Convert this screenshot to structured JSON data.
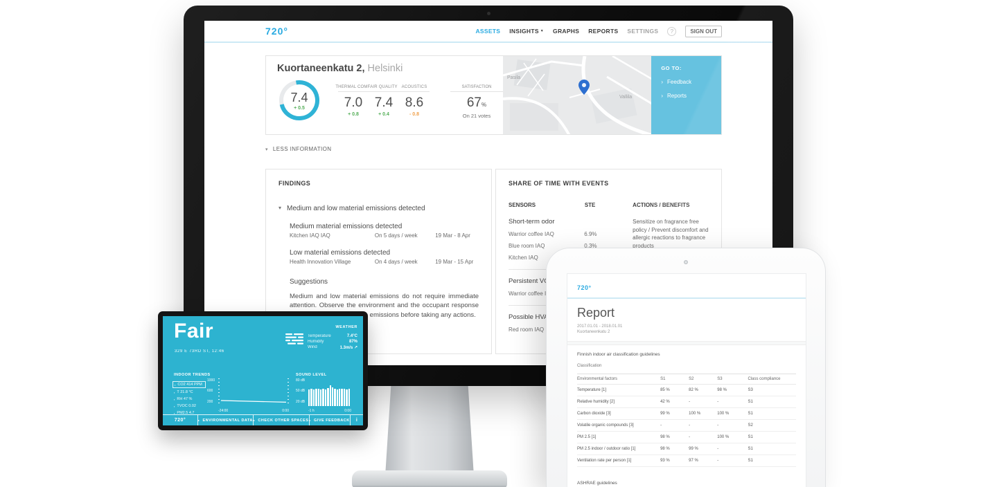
{
  "colors": {
    "brand_blue": "#29aae1",
    "gauge_blue": "#2fb3d6",
    "positive_green": "#53ae57",
    "negative_orange": "#f0a04a",
    "goto_blue": "#66c2e0",
    "display_teal": "#2db3d0"
  },
  "nav": {
    "logo": "720°",
    "items": [
      "ASSETS",
      "INSIGHTS",
      "GRAPHS",
      "REPORTS",
      "SETTINGS"
    ],
    "dropdown_caret": "▼",
    "help": "?",
    "sign_out": "SIGN OUT"
  },
  "asset_card": {
    "title_bold": "Kuortaneenkatu 2,",
    "title_light": "Helsinki",
    "overall": {
      "value": "7.4",
      "delta": "+ 0.5"
    },
    "metrics": [
      {
        "label": "THERMAL COMF.",
        "value": "7.0",
        "delta": "+ 0.8"
      },
      {
        "label": "AIR QUALITY",
        "value": "7.4",
        "delta": "+ 0.4"
      },
      {
        "label": "ACOUSTICS",
        "value": "8.6",
        "delta": "- 0.8"
      }
    ],
    "satisfaction": {
      "label": "SATISFACTION",
      "value": "67",
      "unit": "%",
      "votes": "On 21 votes"
    }
  },
  "map": {
    "label_left": "Pasila",
    "label_right": "Vallila"
  },
  "goto_panel": {
    "title": "GO TO:",
    "chevron": "›",
    "links": [
      "Feedback",
      "Reports"
    ]
  },
  "less_information": {
    "caret": "▾",
    "label": "LESS INFORMATION"
  },
  "findings": {
    "title": "FINDINGS",
    "caret": "▾",
    "group_title": "Medium and low material emissions detected",
    "items": [
      {
        "heading": "Medium material emissions detected",
        "sensor": "Kitchen IAQ IAQ",
        "frequency": "On 5 days / week",
        "period": "19 Mar - 8 Apr"
      },
      {
        "heading": "Low material emissions detected",
        "sensor": "Health Innovation Village",
        "frequency": "On 4 days / week",
        "period": "19 Mar - 15 Apr"
      }
    ],
    "suggestions_title": "Suggestions",
    "suggestions_text": "Medium and low material emissions do not require immediate attention. Observe the environment and the occupant response that might be related to the emissions before taking any actions."
  },
  "share_of_time": {
    "title": "SHARE OF TIME WITH EVENTS",
    "headers": [
      "SENSORS",
      "STE",
      "ACTIONS / BENEFITS"
    ],
    "groups": [
      {
        "name": "Short-term odor",
        "rows": [
          {
            "sensor": "Warrior coffee IAQ",
            "ste": "6.9%"
          },
          {
            "sensor": "Blue room IAQ",
            "ste": "0.3%"
          },
          {
            "sensor": "Kitchen IAQ",
            "ste": ""
          }
        ],
        "action": "Sensitize on fragrance free policy / Prevent discomfort and allergic reactions to fragrance products"
      },
      {
        "name": "Persistent VOC",
        "rows": [
          {
            "sensor": "Warrior coffee IAQ",
            "ste": ""
          }
        ],
        "action": ""
      },
      {
        "name": "Possible HVAC",
        "rows": [
          {
            "sensor": "Red room IAQ",
            "ste": ""
          }
        ],
        "action": ""
      }
    ]
  },
  "tablet_report": {
    "logo": "720°",
    "title": "Report",
    "period": "2017.01.01 - 2018.01.01",
    "address": "Kuortaneenkatu 2",
    "section_title": "Finnish indoor air classification guidelines",
    "subsection_title": "Classification",
    "table": {
      "headers": [
        "Environmental factors",
        "S1",
        "S2",
        "S3",
        "Class compliance"
      ],
      "rows": [
        [
          "Temperature [1]",
          "85 %",
          "82 %",
          "98 %",
          "S3"
        ],
        [
          "Relative humidity [2]",
          "42 %",
          "-",
          "-",
          "S1"
        ],
        [
          "Carbon dioxide [3]",
          "99 %",
          "100 %",
          "100 %",
          "S1"
        ],
        [
          "Volatile organic compounds [3]",
          "-",
          "-",
          "-",
          "S2"
        ],
        [
          "PM 2.5 [1]",
          "98 %",
          "-",
          "100 %",
          "S1"
        ],
        [
          "PM 2.5 indoor / outdoor ratio [1]",
          "98 %",
          "99 %",
          "-",
          "S1"
        ],
        [
          "Ventilation rate per person [1]",
          "93 %",
          "97 %",
          "-",
          "S1"
        ]
      ]
    },
    "section2_title": "ASHRAE guidelines"
  },
  "wall_display": {
    "status": "Fair",
    "subtitle": "329 E 73RD ST, 12:46",
    "weather": {
      "title": "WEATHER",
      "rows": [
        {
          "label": "Temperature",
          "value": "7.4°C"
        },
        {
          "label": "Humidity",
          "value": "87%"
        },
        {
          "label": "Wind",
          "value": "1.3m/s ↗"
        }
      ]
    },
    "indoor_trends": {
      "title": "INDOOR TRENDS",
      "legend_bullet": "▪",
      "legend": [
        "CO2 414 PPM",
        "T 21.8 °C",
        "RH 47 %",
        "TVOC 0.02",
        "PM2.5 4.7"
      ],
      "y_labels": [
        "1000",
        "600",
        "200"
      ],
      "x_labels": [
        "-24:00",
        "0:00"
      ],
      "line_points_pct": [
        [
          0,
          80
        ],
        [
          100,
          86
        ]
      ]
    },
    "sound_level": {
      "title": "SOUND LEVEL",
      "y_labels": [
        "80 dB",
        "50 dB",
        "20 dB"
      ],
      "x_labels": [
        "-1 h",
        "0:00"
      ],
      "bars_pct": [
        62,
        66,
        64,
        67,
        65,
        63,
        66,
        64,
        68,
        80,
        70,
        66,
        64,
        67,
        65,
        66,
        63,
        65
      ]
    },
    "footer": {
      "logo": "720°",
      "bullet": "▸",
      "buttons": [
        "ENVIRONMENTAL DATA",
        "CHECK OTHER SPACES",
        "GIVE FEEDBACK"
      ],
      "info": "i"
    }
  }
}
